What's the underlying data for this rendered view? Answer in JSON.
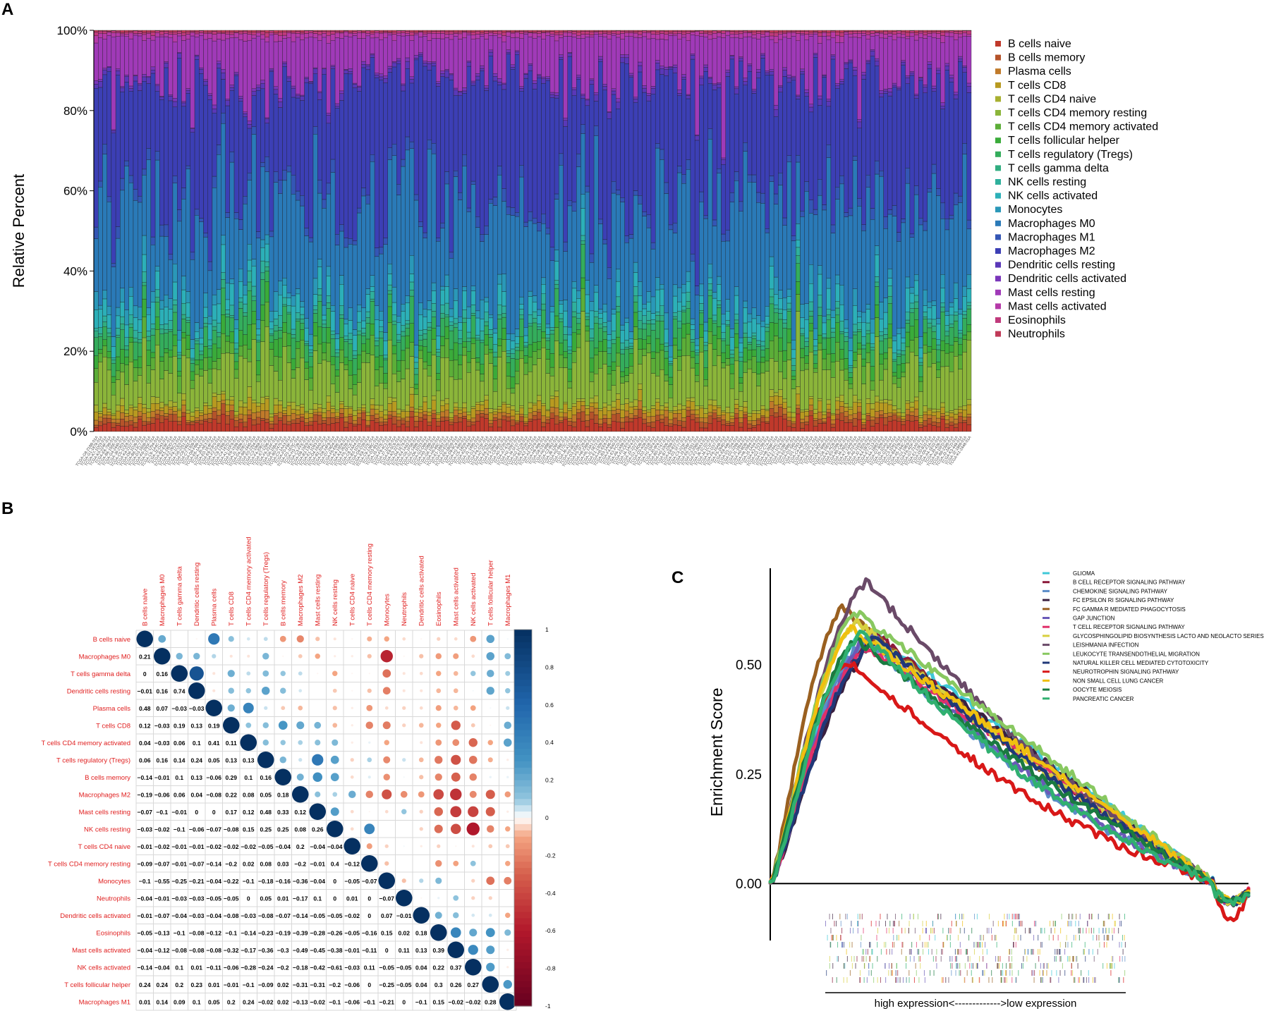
{
  "panels": {
    "a": "A",
    "b": "B",
    "c": "C"
  },
  "chart_data": [
    {
      "type": "bar",
      "stacked": true,
      "ylabel": "Relative Percent",
      "ytick_labels": [
        "0%",
        "20%",
        "40%",
        "60%",
        "80%",
        "100%"
      ],
      "ylim": [
        0,
        100
      ],
      "n_samples": 200,
      "sample_label_prefix": "TCGA",
      "legend_position": "right",
      "series": [
        {
          "name": "B cells naive",
          "color": "#c0392b"
        },
        {
          "name": "B cells memory",
          "color": "#b5532a"
        },
        {
          "name": "Plasma cells",
          "color": "#c07a2a"
        },
        {
          "name": "T cells CD8",
          "color": "#b89a20"
        },
        {
          "name": "T cells CD4 naive",
          "color": "#a8b030"
        },
        {
          "name": "T cells CD4 memory resting",
          "color": "#8bb53a"
        },
        {
          "name": "T cells CD4 memory activated",
          "color": "#5cae38"
        },
        {
          "name": "T cells follicular helper",
          "color": "#3aab3a"
        },
        {
          "name": "T cells regulatory (Tregs)",
          "color": "#34ad5c"
        },
        {
          "name": "T cells gamma delta",
          "color": "#31ad80"
        },
        {
          "name": "NK cells resting",
          "color": "#2fb09c"
        },
        {
          "name": "NK cells activated",
          "color": "#2cb0b8"
        },
        {
          "name": "Monocytes",
          "color": "#2a98b8"
        },
        {
          "name": "Macrophages M0",
          "color": "#2a7ab8"
        },
        {
          "name": "Macrophages M1",
          "color": "#3456b5"
        },
        {
          "name": "Macrophages M2",
          "color": "#3c3fb5"
        },
        {
          "name": "Dendritic cells resting",
          "color": "#5a38b8"
        },
        {
          "name": "Dendritic cells activated",
          "color": "#7a36ba"
        },
        {
          "name": "Mast cells resting",
          "color": "#a03ab8"
        },
        {
          "name": "Mast cells activated",
          "color": "#b53aa8"
        },
        {
          "name": "Eosinophils",
          "color": "#c03a7c"
        },
        {
          "name": "Neutrophils",
          "color": "#c03a58"
        }
      ],
      "mean_composition": [
        2.0,
        1.2,
        1.0,
        1.5,
        1.0,
        9.0,
        3.0,
        2.5,
        3.5,
        1.0,
        1.5,
        3.0,
        2.5,
        23.0,
        2.0,
        31.0,
        1.0,
        0.5,
        9.0,
        1.0,
        0.5,
        0.3
      ]
    },
    {
      "type": "heatmap",
      "subtype": "correlation-matrix",
      "labels": [
        "B cells naive",
        "Macrophages M0",
        "T cells gamma delta",
        "Dendritic cells resting",
        "Plasma cells",
        "T cells CD8",
        "T cells CD4 memory activated",
        "T cells regulatory (Tregs)",
        "B cells memory",
        "Macrophages M2",
        "Mast cells resting",
        "NK cells resting",
        "T cells CD4 naive",
        "T cells CD4 memory resting",
        "Monocytes",
        "Neutrophils",
        "Dendritic cells activated",
        "Eosinophils",
        "Mast cells activated",
        "NK cells activated",
        "T cells follicular helper",
        "Macrophages M1"
      ],
      "lower_triangle": [
        [],
        [
          0.21
        ],
        [
          0,
          0.16
        ],
        [
          -0.01,
          0.16,
          0.74
        ],
        [
          0.48,
          0.07,
          -0.03,
          -0.03
        ],
        [
          0.12,
          -0.03,
          0.19,
          0.13,
          0.19
        ],
        [
          0.04,
          -0.03,
          0.06,
          0.1,
          0.41,
          0.11
        ],
        [
          0.06,
          0.16,
          0.14,
          0.24,
          0.05,
          0.13,
          0.13
        ],
        [
          -0.14,
          -0.01,
          0.1,
          0.13,
          -0.06,
          0.29,
          0.1,
          0.16
        ],
        [
          -0.19,
          -0.06,
          0.06,
          0.04,
          -0.08,
          0.22,
          0.08,
          0.05,
          0.18
        ],
        [
          -0.07,
          -0.1,
          -0.01,
          0,
          0,
          0.17,
          0.12,
          0.48,
          0.33,
          0.12
        ],
        [
          -0.03,
          -0.02,
          -0.1,
          -0.06,
          -0.07,
          -0.08,
          0.15,
          0.25,
          0.25,
          0.08,
          0.26
        ],
        [
          -0.01,
          -0.02,
          -0.01,
          -0.01,
          -0.02,
          -0.02,
          -0.02,
          -0.05,
          -0.04,
          0.2,
          -0.04,
          -0.04
        ],
        [
          -0.09,
          -0.07,
          -0.01,
          -0.07,
          -0.14,
          -0.2,
          0.02,
          0.08,
          0.03,
          -0.2,
          -0.01,
          0.4,
          -0.12
        ],
        [
          -0.1,
          -0.55,
          -0.25,
          -0.21,
          -0.04,
          -0.22,
          -0.1,
          -0.18,
          -0.16,
          -0.36,
          -0.04,
          0,
          -0.05,
          -0.07
        ],
        [
          -0.04,
          -0.01,
          -0.03,
          -0.03,
          -0.05,
          -0.05,
          0,
          0.05,
          0.01,
          -0.17,
          0.1,
          0,
          0.01,
          0,
          -0.07
        ],
        [
          -0.01,
          -0.07,
          -0.04,
          -0.03,
          -0.04,
          -0.08,
          -0.03,
          -0.08,
          -0.07,
          -0.14,
          -0.05,
          -0.05,
          -0.02,
          0,
          0.07,
          -0.01
        ],
        [
          -0.05,
          -0.13,
          -0.1,
          -0.08,
          -0.12,
          -0.1,
          -0.14,
          -0.23,
          -0.19,
          -0.39,
          -0.28,
          -0.26,
          -0.05,
          -0.16,
          0.15,
          0.02,
          0.18
        ],
        [
          -0.04,
          -0.12,
          -0.08,
          -0.08,
          -0.08,
          -0.32,
          -0.17,
          -0.36,
          -0.3,
          -0.49,
          -0.45,
          -0.38,
          -0.01,
          -0.11,
          0,
          0.11,
          0.13,
          0.39
        ],
        [
          -0.14,
          -0.04,
          0.1,
          0.01,
          -0.11,
          -0.06,
          -0.28,
          -0.24,
          -0.2,
          -0.18,
          -0.42,
          -0.61,
          -0.03,
          0.11,
          -0.05,
          -0.05,
          0.04,
          0.22,
          0.37
        ],
        [
          0.24,
          0.24,
          0.2,
          0.23,
          0.01,
          -0.01,
          -0.1,
          -0.09,
          0.02,
          -0.31,
          -0.31,
          -0.2,
          -0.06,
          0,
          -0.25,
          -0.05,
          0.04,
          0.3,
          0.26,
          0.27
        ],
        [
          0.01,
          0.14,
          0.09,
          0.1,
          0.05,
          0.2,
          0.24,
          -0.02,
          0.02,
          -0.13,
          -0.02,
          -0.1,
          -0.06,
          -0.1,
          -0.21,
          0,
          -0.1,
          0.15,
          -0.02,
          -0.02,
          0.28
        ]
      ],
      "colorbar_ticks": [
        "1",
        "0.8",
        "0.6",
        "0.4",
        "0.2",
        "0",
        "-0.2",
        "-0.4",
        "-0.6",
        "-0.8",
        "-1"
      ]
    },
    {
      "type": "line",
      "subtype": "gsea-enrichment",
      "ylabel": "Enrichment Score",
      "ytick_labels": [
        "0.00",
        "0.25",
        "0.50"
      ],
      "ylim": [
        -0.13,
        0.72
      ],
      "xlabel": "high expression<------------->low expression",
      "legend_position": "top-right",
      "series": [
        {
          "name": "GLIOMA",
          "color": "#3fc8d8",
          "peak": 0.58,
          "peak_at": 0.2
        },
        {
          "name": "B CELL RECEPTOR SIGNALING PATHWAY",
          "color": "#8b1a3a",
          "peak": 0.57,
          "peak_at": 0.22
        },
        {
          "name": "CHEMOKINE SIGNALING PATHWAY",
          "color": "#5a8cc8",
          "peak": 0.56,
          "peak_at": 0.2
        },
        {
          "name": "FC EPSILON RI SIGNALING PATHWAY",
          "color": "#3a2040",
          "peak": 0.55,
          "peak_at": 0.22
        },
        {
          "name": "FC GAMMA R MEDIATED PHAGOCYTOSIS",
          "color": "#9a6020",
          "peak": 0.63,
          "peak_at": 0.15
        },
        {
          "name": "GAP JUNCTION",
          "color": "#6a5ab8",
          "peak": 0.57,
          "peak_at": 0.21
        },
        {
          "name": "T CELL RECEPTOR SIGNALING PATHWAY",
          "color": "#e0306a",
          "peak": 0.54,
          "peak_at": 0.2
        },
        {
          "name": "GLYCOSPHINGOLIPID BIOSYNTHESIS LACTO AND NEOLACTO SERIES",
          "color": "#d8d040",
          "peak": 0.6,
          "peak_at": 0.18
        },
        {
          "name": "LEISHMANIA INFECTION",
          "color": "#6a4a68",
          "peak": 0.69,
          "peak_at": 0.2
        },
        {
          "name": "LEUKOCYTE TRANSENDOTHELIAL MIGRATION",
          "color": "#88c860",
          "peak": 0.62,
          "peak_at": 0.18
        },
        {
          "name": "NATURAL KILLER CELL MEDIATED CYTOTOXICITY",
          "color": "#203878",
          "peak": 0.56,
          "peak_at": 0.22
        },
        {
          "name": "NEUROTROPHIN SIGNALING PATHWAY",
          "color": "#d81818",
          "peak": 0.51,
          "peak_at": 0.16
        },
        {
          "name": "NON SMALL CELL LUNG CANCER",
          "color": "#f0c010",
          "peak": 0.58,
          "peak_at": 0.17
        },
        {
          "name": "OOCYTE MEIOSIS",
          "color": "#1a7a40",
          "peak": 0.56,
          "peak_at": 0.18
        },
        {
          "name": "PANCREATIC CANCER",
          "color": "#30b070",
          "peak": 0.57,
          "peak_at": 0.19
        }
      ]
    }
  ]
}
